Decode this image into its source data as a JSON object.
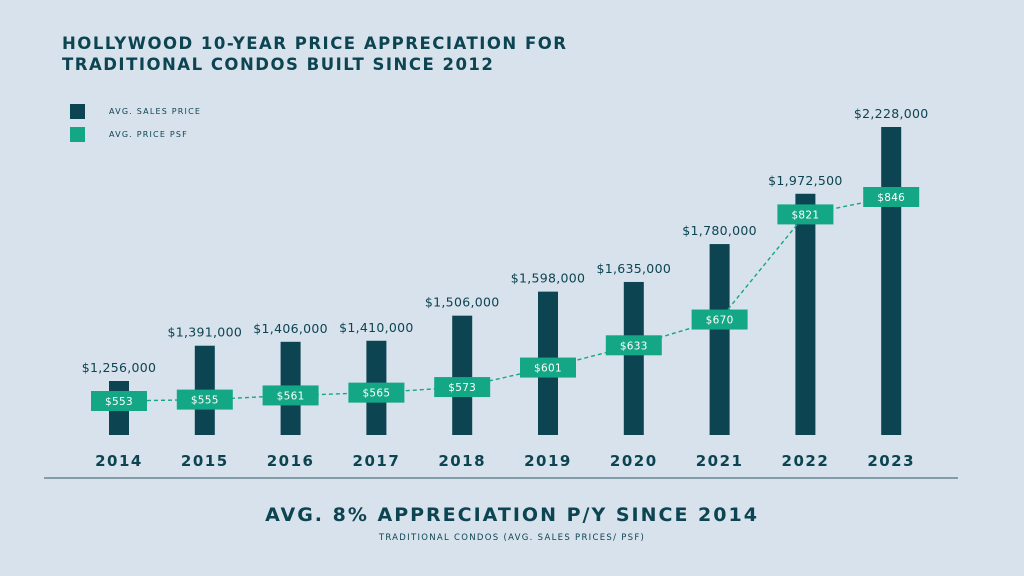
{
  "title_line1": "HOLLYWOOD 10-YEAR PRICE APPRECIATION FOR",
  "title_line2": "TRADITIONAL CONDOS BUILT SINCE 2012",
  "legend": [
    {
      "label": "AVG. SALES PRICE",
      "color": "#0c4451"
    },
    {
      "label": "AVG. PRICE PSF",
      "color": "#14a785"
    }
  ],
  "footer": {
    "headline": "AVG. 8% APPRECIATION P/Y SINCE 2014",
    "subtitle": "TRADITIONAL CONDOS (AVG. SALES PRICES/ PSF)"
  },
  "colors": {
    "background": "#d7e2ec",
    "bar": "#0c4451",
    "psf": "#14a785",
    "axis": "#4f7280"
  },
  "chart_data": {
    "type": "bar",
    "categories": [
      "2014",
      "2015",
      "2016",
      "2017",
      "2018",
      "2019",
      "2020",
      "2021",
      "2022",
      "2023"
    ],
    "series": [
      {
        "name": "AVG. SALES PRICE",
        "type": "bar",
        "values": [
          1256000,
          1391000,
          1406000,
          1410000,
          1506000,
          1598000,
          1635000,
          1780000,
          1972500,
          2228000
        ],
        "labels": [
          "$1,256,000",
          "$1,391,000",
          "$1,406,000",
          "$1,410,000",
          "$1,506,000",
          "$1,598,000",
          "$1,635,000",
          "$1,780,000",
          "$1,972,500",
          "$2,228,000"
        ]
      },
      {
        "name": "AVG. PRICE PSF",
        "type": "line",
        "values": [
          553,
          555,
          561,
          565,
          573,
          601,
          633,
          670,
          821,
          846
        ],
        "labels": [
          "$553",
          "$555",
          "$561",
          "$565",
          "$573",
          "$601",
          "$633",
          "$670",
          "$821",
          "$846"
        ]
      }
    ],
    "legend_position": "top-left",
    "grid": false
  }
}
